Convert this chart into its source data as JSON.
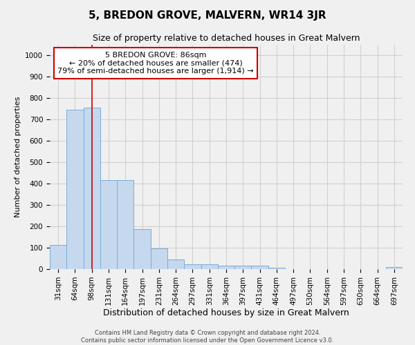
{
  "title": "5, BREDON GROVE, MALVERN, WR14 3JR",
  "subtitle": "Size of property relative to detached houses in Great Malvern",
  "xlabel": "Distribution of detached houses by size in Great Malvern",
  "ylabel": "Number of detached properties",
  "footer_line1": "Contains HM Land Registry data © Crown copyright and database right 2024.",
  "footer_line2": "Contains public sector information licensed under the Open Government Licence v3.0.",
  "bar_color": "#c5d8ee",
  "bar_edge_color": "#7aadd4",
  "grid_color": "#d0d0d0",
  "annotation_box_color": "#cc0000",
  "vline_color": "#cc0000",
  "background_color": "#f0f0f0",
  "ax_background_color": "#f0f0f0",
  "categories": [
    "31sqm",
    "64sqm",
    "98sqm",
    "131sqm",
    "164sqm",
    "197sqm",
    "231sqm",
    "264sqm",
    "297sqm",
    "331sqm",
    "364sqm",
    "397sqm",
    "431sqm",
    "464sqm",
    "497sqm",
    "530sqm",
    "564sqm",
    "597sqm",
    "630sqm",
    "664sqm",
    "697sqm"
  ],
  "values": [
    113,
    745,
    757,
    418,
    418,
    187,
    97,
    44,
    22,
    23,
    17,
    15,
    15,
    8,
    0,
    0,
    0,
    0,
    0,
    0,
    10
  ],
  "ylim": [
    0,
    1050
  ],
  "yticks": [
    0,
    100,
    200,
    300,
    400,
    500,
    600,
    700,
    800,
    900,
    1000
  ],
  "vline_x": 2.0,
  "annotation_text_line1": "5 BREDON GROVE: 86sqm",
  "annotation_text_line2": "← 20% of detached houses are smaller (474)",
  "annotation_text_line3": "79% of semi-detached houses are larger (1,914) →",
  "title_fontsize": 11,
  "subtitle_fontsize": 9,
  "xlabel_fontsize": 9,
  "ylabel_fontsize": 8,
  "tick_fontsize": 7.5,
  "annotation_fontsize": 8,
  "footer_fontsize": 6
}
